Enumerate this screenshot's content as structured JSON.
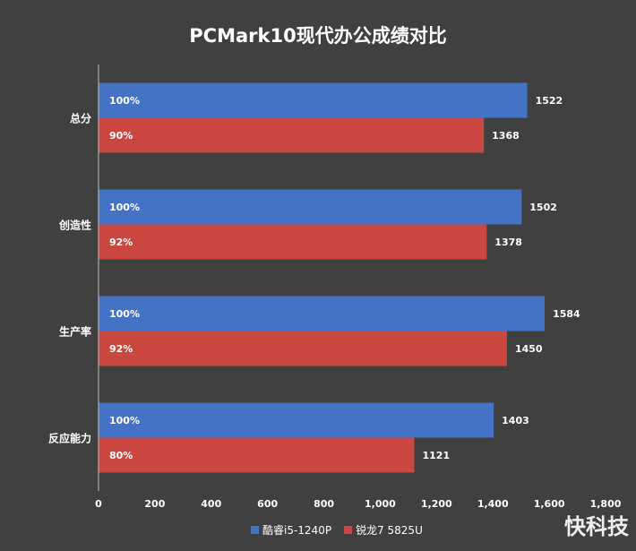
{
  "chart_data": {
    "type": "bar",
    "orientation": "horizontal",
    "title": "PCMark10现代办公成绩对比",
    "categories": [
      "总分",
      "创造性",
      "生产率",
      "反应能力"
    ],
    "series": [
      {
        "name": "酷睿i5-1240P",
        "color": "#4472C4",
        "values": [
          1522,
          1502,
          1584,
          1403
        ],
        "labels_inside": [
          "100%",
          "100%",
          "100%",
          "100%"
        ]
      },
      {
        "name": "锐龙7 5825U",
        "color": "#C9473F",
        "values": [
          1368,
          1378,
          1450,
          1121
        ],
        "labels_inside": [
          "90%",
          "92%",
          "92%",
          "80%"
        ]
      }
    ],
    "xlim": [
      0,
      1800
    ],
    "xticks": [
      "0",
      "200",
      "400",
      "600",
      "800",
      "1,000",
      "1,200",
      "1,400",
      "1,600",
      "1,800"
    ],
    "grid": false,
    "legend": "bottom"
  },
  "watermark": "快科技"
}
